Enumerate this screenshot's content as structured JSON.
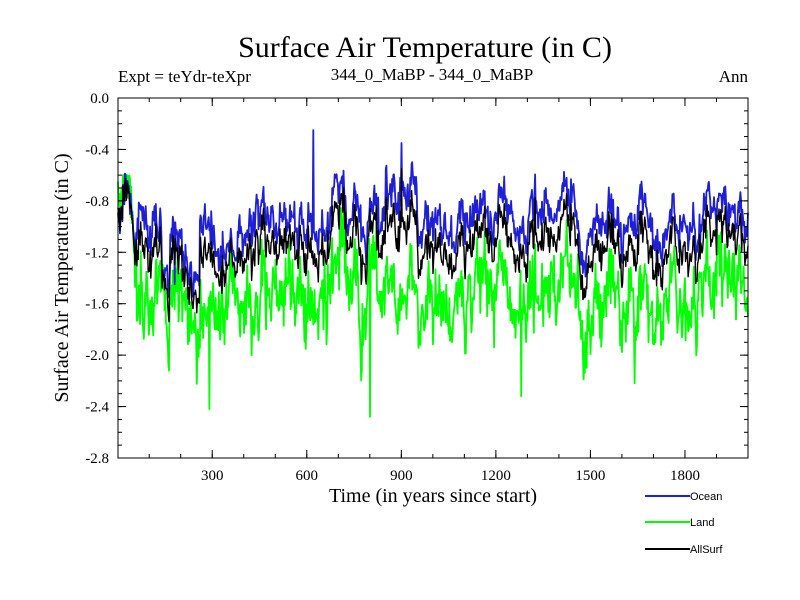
{
  "chart_data": {
    "type": "line",
    "title": "Surface Air Temperature (in C)",
    "subtitle_left": "Expt = teYdr-teXpr",
    "subtitle_center": "344_0_MaBP - 344_0_MaBP",
    "subtitle_right": "Ann",
    "xlabel": "Time (in years since start)",
    "ylabel": "Surface Air Temperature (in C)",
    "xlim": [
      1,
      2000
    ],
    "ylim": [
      -2.8,
      0.0
    ],
    "x_ticks": [
      300,
      600,
      900,
      1200,
      1500,
      1800
    ],
    "y_ticks": [
      0.0,
      -0.4,
      -0.8,
      -1.2,
      -1.6,
      -2.0,
      -2.4,
      -2.8
    ],
    "y_tick_labels": [
      "0.0",
      "-0.4",
      "-0.8",
      "-1.2",
      "-1.6",
      "-2.0",
      "-2.4",
      "-2.8"
    ],
    "legend_position": "bottom-right, outside plot",
    "series": [
      {
        "name": "Ocean",
        "color": "#1f1fd6",
        "approx_mean": -0.95,
        "approx_range": [
          -1.5,
          -0.25
        ],
        "peaks": [
          [
            180,
            -1.45
          ],
          [
            330,
            -1.5
          ],
          [
            620,
            -0.25
          ],
          [
            900,
            -0.35
          ],
          [
            1180,
            -1.05
          ]
        ]
      },
      {
        "name": "Land",
        "color": "#00ff00",
        "approx_mean": -1.55,
        "approx_range": [
          -2.5,
          -0.6
        ],
        "peaks": [
          [
            30,
            -0.6
          ],
          [
            290,
            -2.42
          ],
          [
            800,
            -2.48
          ],
          [
            1280,
            -2.32
          ],
          [
            1640,
            -2.22
          ]
        ]
      },
      {
        "name": "AllSurf",
        "color": "#000000",
        "approx_mean": -1.05,
        "approx_range": [
          -1.5,
          -0.55
        ],
        "peaks": [
          [
            330,
            -1.52
          ],
          [
            900,
            -0.55
          ]
        ]
      }
    ]
  }
}
